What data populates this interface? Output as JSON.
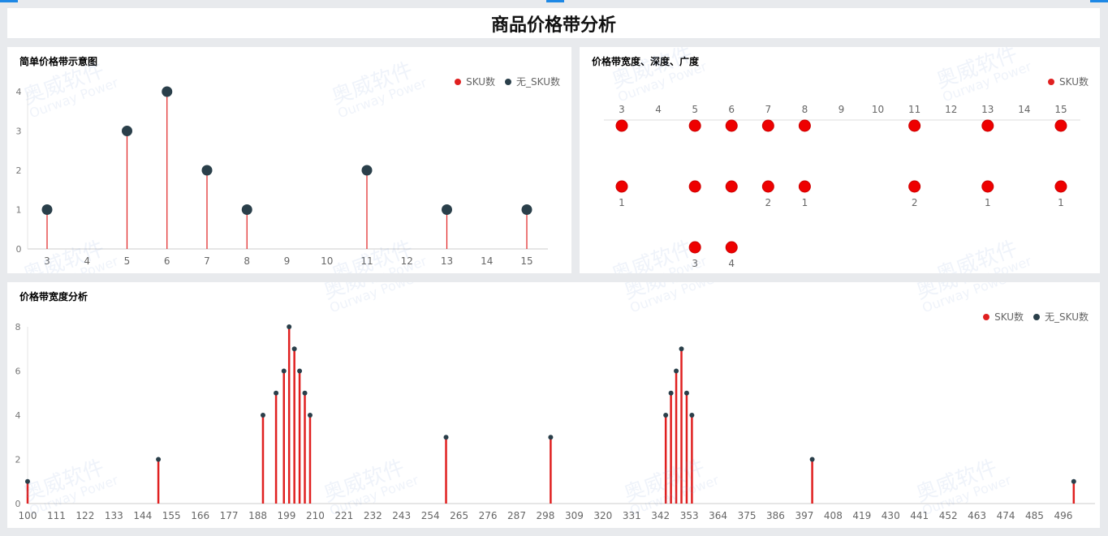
{
  "page_title": "商品价格带分析",
  "watermark": {
    "cn": "奥威软件",
    "en": "Ourway Power"
  },
  "colors": {
    "sku": "#e02020",
    "no_sku": "#2a3f4a",
    "scatter": "#ee0000",
    "background": "#e8eaed"
  },
  "chart_data": [
    {
      "type": "lollipop",
      "title": "简单价格带示意图",
      "legend": [
        "SKU数",
        "无_SKU数"
      ],
      "legend_position": "top-right",
      "categories": [
        "3",
        "4",
        "5",
        "6",
        "7",
        "8",
        "9",
        "10",
        "11",
        "12",
        "13",
        "14",
        "15"
      ],
      "values": [
        1,
        0,
        3,
        4,
        2,
        1,
        0,
        0,
        2,
        0,
        1,
        0,
        1
      ],
      "yticks": [
        "0",
        "1",
        "2",
        "3",
        "4"
      ],
      "ylim": [
        0,
        4
      ]
    },
    {
      "type": "scatter",
      "title": "价格带宽度、深度、广度",
      "legend": [
        "SKU数"
      ],
      "legend_position": "top-right",
      "x_axis_position": "top",
      "categories": [
        "3",
        "4",
        "5",
        "6",
        "7",
        "8",
        "9",
        "10",
        "11",
        "12",
        "13",
        "14",
        "15"
      ],
      "rows": [
        {
          "points": [
            {
              "x": "3",
              "label": ""
            },
            {
              "x": "5",
              "label": ""
            },
            {
              "x": "6",
              "label": ""
            },
            {
              "x": "7",
              "label": ""
            },
            {
              "x": "8",
              "label": ""
            },
            {
              "x": "11",
              "label": ""
            },
            {
              "x": "13",
              "label": ""
            },
            {
              "x": "15",
              "label": ""
            }
          ]
        },
        {
          "points": [
            {
              "x": "3",
              "label": "1"
            },
            {
              "x": "5",
              "label": ""
            },
            {
              "x": "6",
              "label": ""
            },
            {
              "x": "7",
              "label": "2"
            },
            {
              "x": "8",
              "label": "1"
            },
            {
              "x": "11",
              "label": "2"
            },
            {
              "x": "13",
              "label": "1"
            },
            {
              "x": "15",
              "label": "1"
            }
          ]
        },
        {
          "points": [
            {
              "x": "5",
              "label": "3"
            },
            {
              "x": "6",
              "label": "4"
            }
          ]
        }
      ]
    },
    {
      "type": "lollipop",
      "title": "价格带宽度分析",
      "legend": [
        "SKU数",
        "无_SKU数"
      ],
      "legend_position": "top-right",
      "x": [
        100,
        150,
        190,
        195,
        198,
        200,
        202,
        204,
        206,
        208,
        260,
        300,
        344,
        346,
        348,
        350,
        352,
        354,
        400,
        500
      ],
      "values": [
        1,
        2,
        4,
        5,
        6,
        8,
        7,
        6,
        5,
        4,
        3,
        3,
        4,
        5,
        6,
        7,
        5,
        4,
        2,
        1
      ],
      "xticks": [
        "100",
        "111",
        "122",
        "133",
        "144",
        "155",
        "166",
        "177",
        "188",
        "199",
        "210",
        "221",
        "232",
        "243",
        "254",
        "265",
        "276",
        "287",
        "298",
        "309",
        "320",
        "331",
        "342",
        "353",
        "364",
        "375",
        "386",
        "397",
        "408",
        "419",
        "430",
        "441",
        "452",
        "463",
        "474",
        "485",
        "496"
      ],
      "xlim": [
        100,
        504
      ],
      "yticks": [
        "0",
        "2",
        "4",
        "6",
        "8"
      ],
      "ylim": [
        0,
        8
      ]
    }
  ]
}
